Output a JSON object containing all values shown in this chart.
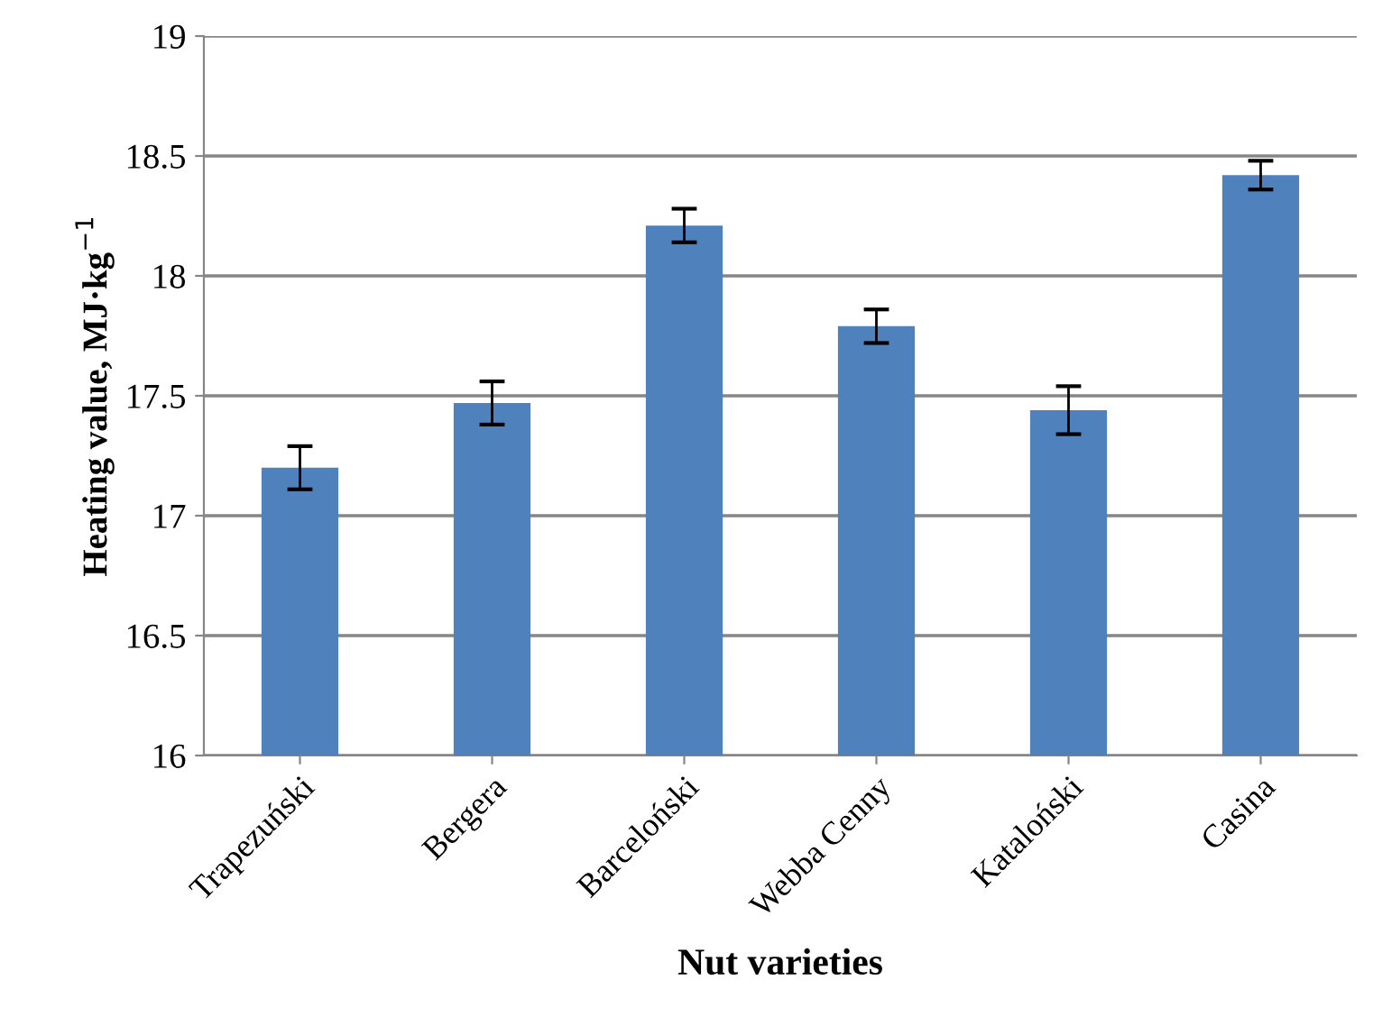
{
  "chart_data": {
    "type": "bar",
    "categories": [
      "Trapezuński",
      "Bergera",
      "Barceloński",
      "Webba Cenny",
      "Kataloński",
      "Casina"
    ],
    "values": [
      17.2,
      17.47,
      18.21,
      17.79,
      17.44,
      18.42
    ],
    "errors": [
      0.09,
      0.09,
      0.07,
      0.07,
      0.1,
      0.06
    ],
    "color": "#4f81bd",
    "xlabel": "Nut varieties",
    "ylabel": "Heating value, MJ·kg$^{−1}$",
    "ylim": [
      16,
      19
    ],
    "yticks": [
      16,
      16.5,
      17,
      17.5,
      18,
      18.5,
      19
    ],
    "grid": "y"
  }
}
